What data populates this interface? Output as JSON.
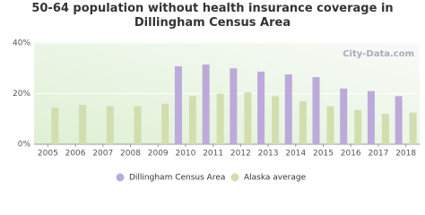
{
  "chart_data": {
    "type": "bar",
    "title": "50-64 population without health insurance coverage in Dillingham Census Area",
    "watermark": "City-Data.com",
    "categories": [
      "2005",
      "2006",
      "2007",
      "2008",
      "2009",
      "2010",
      "2011",
      "2012",
      "2013",
      "2014",
      "2015",
      "2016",
      "2017",
      "2018"
    ],
    "series": [
      {
        "name": "Dillingham Census Area",
        "color": "#bcaadb",
        "values": [
          null,
          null,
          null,
          null,
          null,
          30.8,
          31.5,
          30,
          28.7,
          27.6,
          26.5,
          22,
          21,
          19
        ]
      },
      {
        "name": "Alaska average",
        "color": "#d2deae",
        "values": [
          14.5,
          15.5,
          15,
          15,
          16,
          19,
          20,
          20.5,
          19,
          17,
          15,
          13.5,
          12,
          12.5
        ]
      }
    ],
    "ylim": [
      0,
      40
    ],
    "yticks": [
      {
        "value": 0,
        "label": "0%"
      },
      {
        "value": 20,
        "label": "20%"
      },
      {
        "value": 40,
        "label": "40%"
      }
    ],
    "grid": true
  }
}
